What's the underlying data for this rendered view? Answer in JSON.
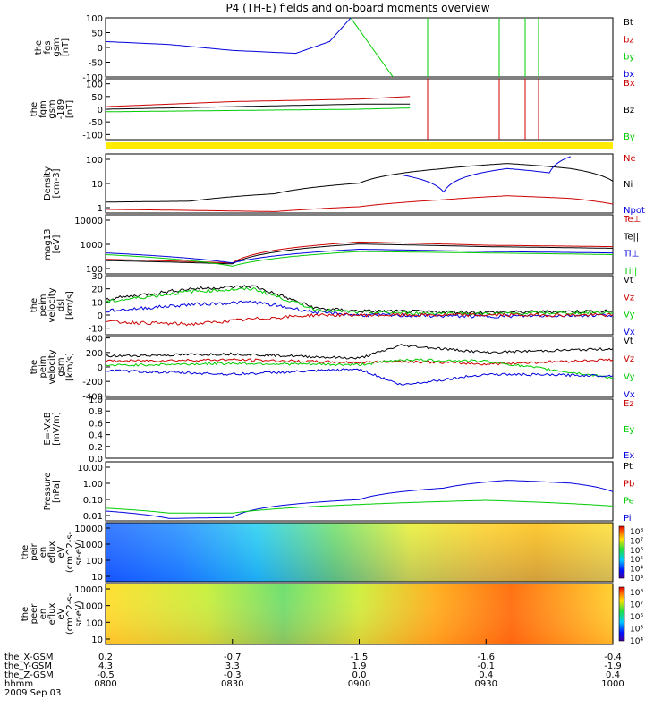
{
  "title": "P4 (TH-E) fields and on-board moments overview",
  "date_label": "2009 Sep 03",
  "colors": {
    "black": "#000000",
    "red": "#cc0000",
    "green": "#00cc00",
    "blue": "#0000dd",
    "yellow": "#ffea00"
  },
  "chart_data": [
    {
      "type": "line",
      "id": "fgs",
      "ylabel": [
        "the",
        "fgs",
        "gsm",
        "[nT]"
      ],
      "yticks": [
        "100",
        "50",
        "0",
        "-50",
        "-100"
      ],
      "ylim": [
        -100,
        100
      ],
      "legend": [
        {
          "name": "Bt",
          "color": "#000000"
        },
        {
          "name": "bz",
          "color": "#cc0000"
        },
        {
          "name": "by",
          "color": "#00cc00"
        },
        {
          "name": "bx",
          "color": "#0000dd"
        }
      ],
      "series": [
        {
          "name": "bx",
          "x": [
            "0800",
            "0815",
            "0830",
            "0845",
            "0853",
            "0858"
          ],
          "values": [
            20,
            10,
            -10,
            -20,
            20,
            100
          ]
        },
        {
          "name": "by",
          "x": [
            "0858",
            "0903",
            "0908"
          ],
          "values": [
            100,
            0,
            -100
          ]
        }
      ]
    },
    {
      "type": "line",
      "id": "fgm",
      "ylabel": [
        "the",
        "fgm",
        "gsm",
        "-189",
        "[nT]"
      ],
      "yticks": [
        "100",
        "50",
        "0",
        "-50",
        "-100"
      ],
      "ylim": [
        -120,
        120
      ],
      "legend": [
        {
          "name": "Bx",
          "color": "#cc0000"
        },
        {
          "name": "Bz",
          "color": "#000000"
        },
        {
          "name": "By",
          "color": "#00cc00"
        }
      ],
      "series": [
        {
          "name": "Bx",
          "x": [
            "0800",
            "0830",
            "0900",
            "0912"
          ],
          "values": [
            10,
            30,
            40,
            50
          ]
        },
        {
          "name": "Bz",
          "x": [
            "0800",
            "0830",
            "0900",
            "0912"
          ],
          "values": [
            0,
            10,
            20,
            20
          ]
        },
        {
          "name": "By",
          "x": [
            "0800",
            "0830",
            "0900",
            "0912"
          ],
          "values": [
            -10,
            -5,
            0,
            5
          ]
        }
      ]
    },
    {
      "type": "line",
      "id": "density",
      "ylabel": [
        "Density",
        "[cm-3]"
      ],
      "yticks": [
        "100",
        "10",
        "1"
      ],
      "yscale": "log",
      "ylim": [
        0.3,
        200
      ],
      "legend": [
        {
          "name": "Ne",
          "color": "#cc0000"
        },
        {
          "name": "Ni",
          "color": "#000000"
        },
        {
          "name": "Npot",
          "color": "#0000dd"
        }
      ],
      "series": [
        {
          "name": "Ni",
          "x": [
            "0800",
            "0820",
            "0840",
            "0900",
            "0920",
            "0935",
            "0950",
            "1000"
          ],
          "values": [
            1,
            1.1,
            2.5,
            8,
            40,
            70,
            40,
            10
          ]
        },
        {
          "name": "Ne",
          "x": [
            "0800",
            "0820",
            "0840",
            "0900",
            "0920",
            "0935",
            "0950",
            "1000"
          ],
          "values": [
            0.45,
            0.4,
            0.35,
            0.6,
            1.3,
            2,
            1.5,
            0.8
          ]
        },
        {
          "name": "Npot",
          "x": [
            "0910",
            "0920",
            "0935",
            "0945",
            "0950"
          ],
          "values": [
            20,
            3,
            40,
            25,
            150
          ]
        }
      ]
    },
    {
      "type": "line",
      "id": "temperature",
      "ylabel": [
        "mag13",
        "[eV]"
      ],
      "yticks": [
        "10000",
        "1000",
        "100"
      ],
      "yscale": "log",
      "ylim": [
        30,
        20000
      ],
      "legend": [
        {
          "name": "Te⊥",
          "color": "#cc0000"
        },
        {
          "name": "Te||",
          "color": "#000000"
        },
        {
          "name": "Ti⊥",
          "color": "#0000dd"
        },
        {
          "name": "Ti||",
          "color": "#00cc00"
        }
      ],
      "series": [
        {
          "name": "Te⊥",
          "x": [
            "0800",
            "0830",
            "0900",
            "0930",
            "1000"
          ],
          "values": [
            150,
            100,
            1000,
            700,
            600
          ]
        },
        {
          "name": "Te||",
          "x": [
            "0800",
            "0830",
            "0900",
            "0930",
            "1000"
          ],
          "values": [
            130,
            90,
            800,
            600,
            500
          ]
        },
        {
          "name": "Ti⊥",
          "x": [
            "0800",
            "0830",
            "0900",
            "0930",
            "1000"
          ],
          "values": [
            300,
            100,
            450,
            350,
            300
          ]
        },
        {
          "name": "Ti||",
          "x": [
            "0800",
            "0830",
            "0900",
            "0930",
            "1000"
          ],
          "values": [
            250,
            70,
            350,
            300,
            250
          ]
        }
      ]
    },
    {
      "type": "line",
      "id": "velocity-dsl",
      "ylabel": [
        "the",
        "peim",
        "velocity",
        "dsl",
        "[km/s]"
      ],
      "yticks": [
        "30",
        "20",
        "10",
        "0",
        "-10"
      ],
      "ylim": [
        -15,
        30
      ],
      "legend": [
        {
          "name": "Vt",
          "color": "#000000"
        },
        {
          "name": "Vz",
          "color": "#cc0000"
        },
        {
          "name": "Vy",
          "color": "#00cc00"
        },
        {
          "name": "Vx",
          "color": "#0000dd"
        }
      ],
      "series": [
        {
          "name": "Vt",
          "x": [
            "0800",
            "0820",
            "0835",
            "0850",
            "0900",
            "0930",
            "1000"
          ],
          "values": [
            12,
            20,
            22,
            5,
            3,
            2,
            3
          ]
        },
        {
          "name": "Vy",
          "x": [
            "0800",
            "0820",
            "0835",
            "0850",
            "0900",
            "0930",
            "1000"
          ],
          "values": [
            10,
            18,
            20,
            4,
            2,
            1,
            2
          ]
        },
        {
          "name": "Vx",
          "x": [
            "0800",
            "0820",
            "0835",
            "0850",
            "0900",
            "0930",
            "1000"
          ],
          "values": [
            3,
            8,
            10,
            2,
            0,
            -1,
            0
          ]
        },
        {
          "name": "Vz",
          "x": [
            "0800",
            "0820",
            "0835",
            "0850",
            "0900",
            "0930",
            "1000"
          ],
          "values": [
            -5,
            -7,
            -3,
            0,
            0,
            0,
            0
          ]
        }
      ]
    },
    {
      "type": "line",
      "id": "velocity-gsm",
      "ylabel": [
        "the",
        "peim",
        "velocity",
        "gsm",
        "[km/s]"
      ],
      "yticks": [
        "400",
        "200",
        "0",
        "-200",
        "-400"
      ],
      "ylim": [
        -420,
        420
      ],
      "legend": [
        {
          "name": "Vt",
          "color": "#000000"
        },
        {
          "name": "Vz",
          "color": "#cc0000"
        },
        {
          "name": "Vy",
          "color": "#00cc00"
        },
        {
          "name": "Vx",
          "color": "#0000dd"
        }
      ],
      "series": [
        {
          "name": "Vt",
          "x": [
            "0800",
            "0830",
            "0900",
            "0910",
            "0930",
            "1000"
          ],
          "values": [
            150,
            180,
            120,
            300,
            200,
            250
          ]
        },
        {
          "name": "Vz",
          "x": [
            "0800",
            "0830",
            "0900",
            "0910",
            "0930",
            "1000"
          ],
          "values": [
            80,
            100,
            60,
            80,
            40,
            100
          ]
        },
        {
          "name": "Vy",
          "x": [
            "0800",
            "0830",
            "0900",
            "0910",
            "0930",
            "1000"
          ],
          "values": [
            20,
            50,
            30,
            100,
            80,
            -150
          ]
        },
        {
          "name": "Vx",
          "x": [
            "0800",
            "0830",
            "0900",
            "0910",
            "0930",
            "1000"
          ],
          "values": [
            -50,
            -100,
            -30,
            -250,
            -100,
            -120
          ]
        }
      ]
    },
    {
      "type": "line",
      "id": "efield",
      "ylabel": [
        "E=-VxB",
        "[mV/m]"
      ],
      "yticks": [
        "1.0",
        "0.8",
        "0.6",
        "0.4",
        "0.2",
        "0.0"
      ],
      "ylim": [
        0,
        1
      ],
      "legend": [
        {
          "name": "Ez",
          "color": "#cc0000"
        },
        {
          "name": "Ey",
          "color": "#00cc00"
        },
        {
          "name": "Ex",
          "color": "#0000dd"
        }
      ],
      "series": []
    },
    {
      "type": "line",
      "id": "pressure",
      "ylabel": [
        "Pressure",
        "[nPa]"
      ],
      "yticks": [
        "10.00",
        "1.00",
        "0.10",
        "0.01"
      ],
      "yscale": "log",
      "ylim": [
        0.005,
        20
      ],
      "legend": [
        {
          "name": "Pt",
          "color": "#000000"
        },
        {
          "name": "Pb",
          "color": "#cc0000"
        },
        {
          "name": "Pe",
          "color": "#00cc00"
        },
        {
          "name": "Pi",
          "color": "#0000dd"
        }
      ],
      "series": [
        {
          "name": "Pi",
          "x": [
            "0800",
            "0815",
            "0830",
            "0900",
            "0920",
            "0935",
            "0950",
            "1000"
          ],
          "values": [
            0.02,
            0.007,
            0.008,
            0.1,
            0.5,
            1.5,
            1.0,
            0.3
          ]
        },
        {
          "name": "Pe",
          "x": [
            "0800",
            "0815",
            "0830",
            "0900",
            "0930",
            "1000"
          ],
          "values": [
            0.03,
            0.015,
            0.015,
            0.05,
            0.09,
            0.04
          ]
        }
      ]
    },
    {
      "type": "heatmap",
      "id": "ion-spectrogram",
      "ylabel": [
        "the",
        "peir",
        "en",
        "eflux",
        "eV",
        "(cm^2-s-",
        "sr-eV)"
      ],
      "yticks": [
        "10000",
        "1000",
        "100",
        "10"
      ],
      "yscale": "log",
      "colorbar_ticks": [
        "10⁸",
        "10⁷",
        "10⁶",
        "10⁵",
        "10⁴",
        "10³"
      ],
      "description": "blue/cyan at 0800-0840, green/yellow by 0900, orange maximum near 0930-0945"
    },
    {
      "type": "heatmap",
      "id": "electron-spectrogram",
      "ylabel": [
        "the",
        "peer",
        "en",
        "eflux",
        "eV",
        "(cm^2-s-",
        "sr-eV)"
      ],
      "yticks": [
        "10000",
        "1000",
        "100",
        "10"
      ],
      "yscale": "log",
      "colorbar_ticks": [
        "10⁸",
        "10⁷",
        "10⁶",
        "10⁵",
        "10⁴"
      ],
      "description": "yellow/green dominant, red/orange maximum near 0930-0945 at high energy"
    }
  ],
  "xaxis": {
    "ticks": [
      "0800",
      "0830",
      "0900",
      "0930",
      "1000"
    ],
    "rows": [
      {
        "label": "the_X-GSM",
        "values": [
          "0.2",
          "-0.7",
          "-1.5",
          "-1.6",
          "-0.4"
        ]
      },
      {
        "label": "the_Y-GSM",
        "values": [
          "4.3",
          "3.3",
          "1.9",
          "-0.1",
          "-1.9"
        ]
      },
      {
        "label": "the_Z-GSM",
        "values": [
          "-0.5",
          "-0.3",
          "0.0",
          "0.4",
          "0.4"
        ]
      },
      {
        "label": "hhmm",
        "values": [
          "0800",
          "0830",
          "0900",
          "0930",
          "1000"
        ]
      }
    ]
  }
}
